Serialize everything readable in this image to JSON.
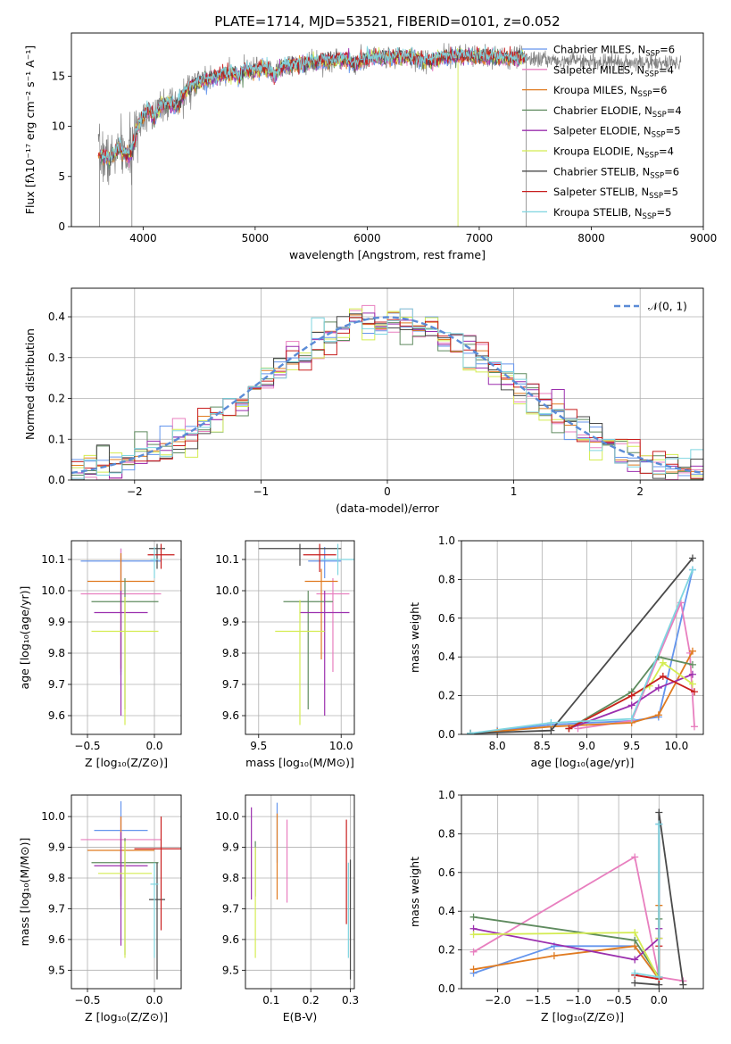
{
  "figure": {
    "title": "PLATE=1714, MJD=53521, FIBERID=0101, z=0.052"
  },
  "series_styles": [
    {
      "name": "Chabrier MILES",
      "nssp": "6",
      "color": "#6495ed"
    },
    {
      "name": "Salpeter MILES",
      "nssp": "4",
      "color": "#e87fbf"
    },
    {
      "name": "Kroupa MILES",
      "nssp": "6",
      "color": "#e07b21"
    },
    {
      "name": "Chabrier ELODIE",
      "nssp": "4",
      "color": "#5f8b5f"
    },
    {
      "name": "Salpeter ELODIE",
      "nssp": "5",
      "color": "#9b2fae"
    },
    {
      "name": "Kroupa ELODIE",
      "nssp": "4",
      "color": "#d4ec52"
    },
    {
      "name": "Chabrier STELIB",
      "nssp": "6",
      "color": "#4a4a4a"
    },
    {
      "name": "Salpeter STELIB",
      "nssp": "5",
      "color": "#c81e1e"
    },
    {
      "name": "Kroupa STELIB",
      "nssp": "5",
      "color": "#7fd5e0"
    }
  ],
  "chart_data": [
    {
      "id": "spectrum",
      "type": "line",
      "xlabel": "wavelength [Angstrom, rest frame]",
      "ylabel": "Flux [fλ10⁻¹⁷ erg cm⁻² s⁻¹ A⁻¹]",
      "xlim": [
        3360,
        9000
      ],
      "ylim": [
        0,
        19.3
      ],
      "xticks": [
        4000,
        5000,
        6000,
        7000,
        8000,
        9000
      ],
      "yticks": [
        0,
        5,
        10,
        15
      ],
      "legend_position": "right",
      "observed_color": "#808080",
      "continuum": [
        [
          3600,
          7.3
        ],
        [
          3650,
          7.0
        ],
        [
          3700,
          6.6
        ],
        [
          3750,
          7.4
        ],
        [
          3800,
          7.8
        ],
        [
          3850,
          7.0
        ],
        [
          3900,
          7.5
        ],
        [
          3950,
          10.0
        ],
        [
          4000,
          11.1
        ],
        [
          4050,
          11.8
        ],
        [
          4100,
          10.9
        ],
        [
          4150,
          11.9
        ],
        [
          4200,
          12.4
        ],
        [
          4300,
          12.0
        ],
        [
          4350,
          13.0
        ],
        [
          4400,
          13.7
        ],
        [
          4500,
          14.4
        ],
        [
          4600,
          14.8
        ],
        [
          4700,
          15.1
        ],
        [
          4800,
          15.3
        ],
        [
          4860,
          14.8
        ],
        [
          4900,
          15.5
        ],
        [
          5000,
          15.6
        ],
        [
          5100,
          15.8
        ],
        [
          5175,
          15.0
        ],
        [
          5250,
          16.0
        ],
        [
          5400,
          16.2
        ],
        [
          5600,
          16.5
        ],
        [
          5800,
          16.7
        ],
        [
          5890,
          16.2
        ],
        [
          6000,
          16.8
        ],
        [
          6200,
          16.9
        ],
        [
          6400,
          16.9
        ],
        [
          6563,
          16.4
        ],
        [
          6700,
          17.0
        ],
        [
          6900,
          17.0
        ],
        [
          7100,
          16.9
        ],
        [
          7300,
          16.8
        ],
        [
          7400,
          16.8
        ],
        [
          7500,
          16.7
        ],
        [
          7700,
          16.6
        ],
        [
          8000,
          16.5
        ],
        [
          8300,
          16.4
        ],
        [
          8600,
          16.3
        ],
        [
          8800,
          16.3
        ]
      ]
    },
    {
      "id": "residuals",
      "type": "histogram",
      "xlabel": "(data-model)/error",
      "ylabel": "Normed distribution",
      "xlim": [
        -2.5,
        2.5
      ],
      "ylim": [
        0,
        0.47
      ],
      "xticks": [
        -2,
        -1,
        0,
        1,
        2
      ],
      "yticks": [
        0.0,
        0.1,
        0.2,
        0.3,
        0.4
      ],
      "legend_position": "top-right",
      "reference_label": "𝒩(0, 1)",
      "reference_color": "#5b8bd6",
      "bin_width": 0.1
    },
    {
      "id": "age-vs-Z",
      "type": "errorbar",
      "xlabel": "Z [log₁₀(Z/Z⊙)]",
      "ylabel": "age  [log₁₀(age/yr)]",
      "xlim": [
        -0.62,
        0.2
      ],
      "ylim": [
        9.54,
        10.16
      ],
      "xticks": [
        -0.5,
        0.0
      ],
      "yticks": [
        9.6,
        9.7,
        9.8,
        9.9,
        10.0,
        10.1
      ],
      "points": [
        {
          "x": -0.25,
          "xerr": 0.3,
          "y": 10.095,
          "ylo": 9.73,
          "yhi": 10.135
        },
        {
          "x": -0.25,
          "xerr": 0.3,
          "y": 9.99,
          "ylo": 9.74,
          "yhi": 10.135
        },
        {
          "x": -0.25,
          "xerr": 0.25,
          "y": 10.03,
          "ylo": 9.75,
          "yhi": 10.12
        },
        {
          "x": -0.22,
          "xerr": 0.25,
          "y": 9.965,
          "ylo": 9.62,
          "yhi": 10.04
        },
        {
          "x": -0.25,
          "xerr": 0.2,
          "y": 9.93,
          "ylo": 9.6,
          "yhi": 10.0
        },
        {
          "x": -0.22,
          "xerr": 0.25,
          "y": 9.87,
          "ylo": 9.57,
          "yhi": 9.98
        },
        {
          "x": 0.02,
          "xerr": 0.06,
          "y": 10.135,
          "ylo": 10.07,
          "yhi": 10.15
        },
        {
          "x": 0.05,
          "xerr": 0.1,
          "y": 10.115,
          "ylo": 10.07,
          "yhi": 10.15
        },
        {
          "x": 0.0,
          "xerr": 0.03,
          "y": 10.1,
          "ylo": 10.04,
          "yhi": 10.14
        }
      ]
    },
    {
      "id": "age-vs-mass",
      "type": "errorbar",
      "xlabel": "mass [log₁₀(M/M⊙)]",
      "ylabel": "",
      "xlim": [
        9.42,
        10.08
      ],
      "ylim": [
        9.54,
        10.16
      ],
      "xticks": [
        9.5,
        10.0
      ],
      "yticks": [
        9.6,
        9.7,
        9.8,
        9.9,
        10.0,
        10.1
      ],
      "points": [
        {
          "x": 9.9,
          "xerr": 0.1,
          "y": 10.095,
          "ylo": 10.04,
          "yhi": 10.14
        },
        {
          "x": 9.95,
          "xerr": 0.1,
          "y": 9.99,
          "ylo": 9.74,
          "yhi": 10.04
        },
        {
          "x": 9.88,
          "xerr": 0.1,
          "y": 10.03,
          "ylo": 9.78,
          "yhi": 10.07
        },
        {
          "x": 9.8,
          "xerr": 0.15,
          "y": 9.965,
          "ylo": 9.62,
          "yhi": 10.0
        },
        {
          "x": 9.9,
          "xerr": 0.15,
          "y": 9.93,
          "ylo": 9.6,
          "yhi": 10.0
        },
        {
          "x": 9.75,
          "xerr": 0.15,
          "y": 9.87,
          "ylo": 9.57,
          "yhi": 9.97
        },
        {
          "x": 9.75,
          "xerr": 0.25,
          "y": 10.135,
          "ylo": 10.08,
          "yhi": 10.15
        },
        {
          "x": 9.87,
          "xerr": 0.1,
          "y": 10.115,
          "ylo": 10.06,
          "yhi": 10.15
        },
        {
          "x": 9.98,
          "xerr": 0.1,
          "y": 10.1,
          "ylo": 10.05,
          "yhi": 10.15
        }
      ]
    },
    {
      "id": "weight-vs-age",
      "type": "line",
      "xlabel": "age  [log₁₀(age/yr)]",
      "ylabel": "mass weight",
      "xlim": [
        7.6,
        10.3
      ],
      "ylim": [
        0.0,
        1.0
      ],
      "xticks": [
        8.0,
        8.5,
        9.0,
        9.5,
        10.0
      ],
      "yticks": [
        0.0,
        0.2,
        0.4,
        0.6,
        0.8,
        1.0
      ],
      "lines": [
        {
          "x": [
            7.7,
            8.0,
            8.6,
            9.5,
            9.8,
            10.18
          ],
          "y": [
            0.005,
            0.02,
            0.05,
            0.07,
            0.09,
            0.85
          ]
        },
        {
          "x": [
            8.9,
            9.5,
            10.05,
            10.15,
            10.2
          ],
          "y": [
            0.03,
            0.07,
            0.68,
            0.42,
            0.04
          ]
        },
        {
          "x": [
            7.7,
            8.0,
            8.6,
            9.5,
            9.8,
            10.18
          ],
          "y": [
            0.005,
            0.015,
            0.04,
            0.06,
            0.1,
            0.43
          ]
        },
        {
          "x": [
            8.8,
            9.5,
            9.8,
            10.18
          ],
          "y": [
            0.03,
            0.22,
            0.4,
            0.36
          ]
        },
        {
          "x": [
            8.8,
            9.5,
            9.8,
            10.18
          ],
          "y": [
            0.03,
            0.15,
            0.24,
            0.31
          ]
        },
        {
          "x": [
            8.8,
            9.7,
            9.85,
            10.18
          ],
          "y": [
            0.03,
            0.25,
            0.37,
            0.26
          ]
        },
        {
          "x": [
            7.7,
            8.6,
            10.18
          ],
          "y": [
            0.005,
            0.02,
            0.91
          ]
        },
        {
          "x": [
            8.8,
            9.5,
            9.85,
            10.2
          ],
          "y": [
            0.03,
            0.2,
            0.3,
            0.22
          ]
        },
        {
          "x": [
            7.7,
            8.6,
            9.5,
            10.18
          ],
          "y": [
            0.005,
            0.06,
            0.08,
            0.85
          ]
        }
      ]
    },
    {
      "id": "mass-vs-Z",
      "type": "errorbar",
      "xlabel": "Z [log₁₀(Z/Z⊙)]",
      "ylabel": "mass [log₁₀(M/M⊙)]",
      "xlim": [
        -0.62,
        0.2
      ],
      "ylim": [
        9.44,
        10.07
      ],
      "xticks": [
        -0.5,
        0.0
      ],
      "yticks": [
        9.5,
        9.6,
        9.7,
        9.8,
        9.9,
        10.0
      ],
      "points": [
        {
          "x": -0.25,
          "xerr": 0.2,
          "y": 9.955,
          "ylo": 9.71,
          "yhi": 10.05
        },
        {
          "x": -0.25,
          "xerr": 0.3,
          "y": 9.925,
          "ylo": 9.74,
          "yhi": 10.0
        },
        {
          "x": -0.25,
          "xerr": 0.25,
          "y": 9.89,
          "ylo": 9.73,
          "yhi": 10.0
        },
        {
          "x": -0.22,
          "xerr": 0.25,
          "y": 9.85,
          "ylo": 9.55,
          "yhi": 9.93
        },
        {
          "x": -0.25,
          "xerr": 0.2,
          "y": 9.84,
          "ylo": 9.58,
          "yhi": 9.95
        },
        {
          "x": -0.22,
          "xerr": 0.2,
          "y": 9.815,
          "ylo": 9.54,
          "yhi": 9.92
        },
        {
          "x": 0.02,
          "xerr": 0.06,
          "y": 9.73,
          "ylo": 9.47,
          "yhi": 9.85
        },
        {
          "x": 0.05,
          "xerr": 0.2,
          "y": 9.895,
          "ylo": 9.63,
          "yhi": 10.0
        },
        {
          "x": 0.0,
          "xerr": 0.03,
          "y": 9.78,
          "ylo": 9.54,
          "yhi": 9.85
        }
      ]
    },
    {
      "id": "mass-vs-EBV",
      "type": "errorbar",
      "xlabel": "E(B-V)",
      "ylabel": "",
      "xlim": [
        0.035,
        0.31
      ],
      "ylim": [
        9.44,
        10.07
      ],
      "xticks": [
        0.1,
        0.2,
        0.3
      ],
      "yticks": [
        9.5,
        9.6,
        9.7,
        9.8,
        9.9,
        10.0
      ],
      "points": [
        {
          "x": 0.115,
          "xerr": 0,
          "y": 9.95,
          "ylo": 9.85,
          "yhi": 10.045
        },
        {
          "x": 0.14,
          "xerr": 0,
          "y": 9.87,
          "ylo": 9.72,
          "yhi": 9.99
        },
        {
          "x": 0.115,
          "xerr": 0,
          "y": 9.87,
          "ylo": 9.73,
          "yhi": 10.01
        },
        {
          "x": 0.06,
          "xerr": 0,
          "y": 9.85,
          "ylo": 9.74,
          "yhi": 9.92
        },
        {
          "x": 0.05,
          "xerr": 0,
          "y": 9.88,
          "ylo": 9.73,
          "yhi": 10.03
        },
        {
          "x": 0.06,
          "xerr": 0,
          "y": 9.7,
          "ylo": 9.54,
          "yhi": 9.9
        },
        {
          "x": 0.3,
          "xerr": 0,
          "y": 9.7,
          "ylo": 9.47,
          "yhi": 9.86
        },
        {
          "x": 0.29,
          "xerr": 0,
          "y": 9.8,
          "ylo": 9.65,
          "yhi": 9.99
        },
        {
          "x": 0.295,
          "xerr": 0,
          "y": 9.75,
          "ylo": 9.54,
          "yhi": 9.85
        }
      ]
    },
    {
      "id": "weight-vs-Z",
      "type": "line",
      "xlabel": "Z [log₁₀(Z/Z⊙)]",
      "ylabel": "mass weight",
      "xlim": [
        -2.45,
        0.55
      ],
      "ylim": [
        0.0,
        1.0
      ],
      "xticks": [
        -2.0,
        -1.5,
        -1.0,
        -0.5,
        0.0
      ],
      "yticks": [
        0.0,
        0.2,
        0.4,
        0.6,
        0.8,
        1.0
      ],
      "lines": [
        {
          "x": [
            -2.3,
            -1.3,
            -0.3,
            0.0,
            0.0
          ],
          "y": [
            0.08,
            0.22,
            0.22,
            0.05,
            0.85
          ]
        },
        {
          "x": [
            -2.3,
            -0.3,
            0.0,
            0.3
          ],
          "y": [
            0.19,
            0.68,
            0.06,
            0.04
          ]
        },
        {
          "x": [
            -2.3,
            -1.3,
            -0.3,
            0.0,
            0.0
          ],
          "y": [
            0.1,
            0.17,
            0.22,
            0.05,
            0.43
          ]
        },
        {
          "x": [
            -2.3,
            -0.3,
            0.0,
            0.0
          ],
          "y": [
            0.37,
            0.25,
            0.06,
            0.36
          ]
        },
        {
          "x": [
            -2.3,
            -0.3,
            0.0,
            0.0
          ],
          "y": [
            0.31,
            0.15,
            0.26,
            0.31
          ]
        },
        {
          "x": [
            -2.3,
            -0.3,
            0.0,
            0.0
          ],
          "y": [
            0.28,
            0.29,
            0.05,
            0.26
          ]
        },
        {
          "x": [
            -0.3,
            0.0,
            0.0,
            0.3
          ],
          "y": [
            0.03,
            0.02,
            0.91,
            0.02
          ]
        },
        {
          "x": [
            -0.3,
            0.0,
            0.0
          ],
          "y": [
            0.07,
            0.05,
            0.22
          ]
        },
        {
          "x": [
            -0.3,
            0.0,
            0.0
          ],
          "y": [
            0.08,
            0.06,
            0.85
          ]
        }
      ]
    }
  ]
}
